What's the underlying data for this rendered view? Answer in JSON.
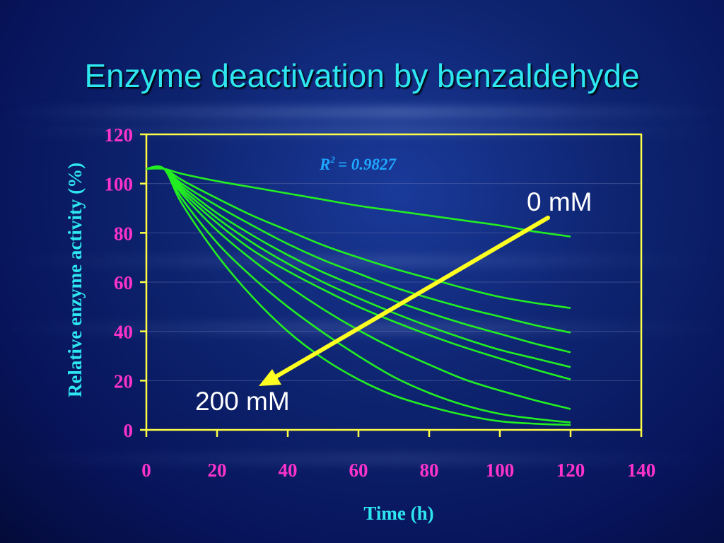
{
  "title": "Enzyme deactivation by benzaldehyde",
  "chart_data": {
    "type": "line",
    "title": "Enzyme deactivation by benzaldehyde",
    "xlabel": "Time (h)",
    "ylabel": "Relative enzyme activity (%)",
    "xlim": [
      0,
      140
    ],
    "ylim": [
      0,
      120
    ],
    "x_ticks": [
      0,
      20,
      40,
      60,
      80,
      100,
      120,
      140
    ],
    "y_ticks": [
      0,
      20,
      40,
      60,
      80,
      100,
      120
    ],
    "grid": true,
    "r2_prefix": "R",
    "r2_sup": "2",
    "r2_value": "= 0.9827",
    "annotations": {
      "high_label": "0 mM",
      "low_label": "200 mM"
    },
    "colors": {
      "curves": "#22ee22",
      "axes": "#ffff44",
      "arrow": "#ffff22",
      "tick_labels": "#ff33cc",
      "axis_titles": "#2ee6f0"
    },
    "x": [
      0,
      5,
      10,
      20,
      30,
      40,
      50,
      60,
      70,
      80,
      90,
      100,
      110,
      120
    ],
    "series": [
      {
        "values": [
          106,
          106,
          104,
          101,
          98.5,
          96,
          93.5,
          91,
          89,
          87,
          85,
          83,
          80.5,
          78.5
        ]
      },
      {
        "values": [
          106,
          106,
          101.5,
          94,
          87,
          81,
          75,
          70,
          65.5,
          61.5,
          57.5,
          54,
          51.5,
          49.5
        ]
      },
      {
        "values": [
          106,
          106,
          100,
          91,
          83,
          75.5,
          69,
          63.5,
          58,
          53.5,
          49.5,
          46,
          42.5,
          39.5
        ]
      },
      {
        "values": [
          106,
          106,
          99,
          88,
          79,
          71,
          64,
          58,
          52.5,
          47.5,
          43,
          39,
          35,
          31.5
        ]
      },
      {
        "values": [
          106,
          106,
          98,
          86,
          76,
          67.5,
          60,
          53.5,
          47.5,
          42,
          37,
          32.5,
          29,
          25.5
        ]
      },
      {
        "values": [
          106,
          106,
          97,
          84,
          73,
          64.5,
          57,
          50,
          44,
          38.5,
          33.5,
          29,
          24.5,
          20.5
        ]
      },
      {
        "values": [
          106,
          106,
          96,
          81,
          69,
          58.5,
          49,
          40.5,
          33,
          26.5,
          20.5,
          16,
          12,
          8.5
        ]
      },
      {
        "values": [
          106,
          106,
          94,
          76,
          62,
          50,
          39.5,
          30,
          21.5,
          15,
          10,
          6.5,
          4.5,
          3
        ]
      },
      {
        "values": [
          106,
          106,
          92,
          71,
          54,
          40,
          29,
          20.5,
          14,
          9.5,
          6,
          3.5,
          2.5,
          2
        ]
      }
    ]
  }
}
